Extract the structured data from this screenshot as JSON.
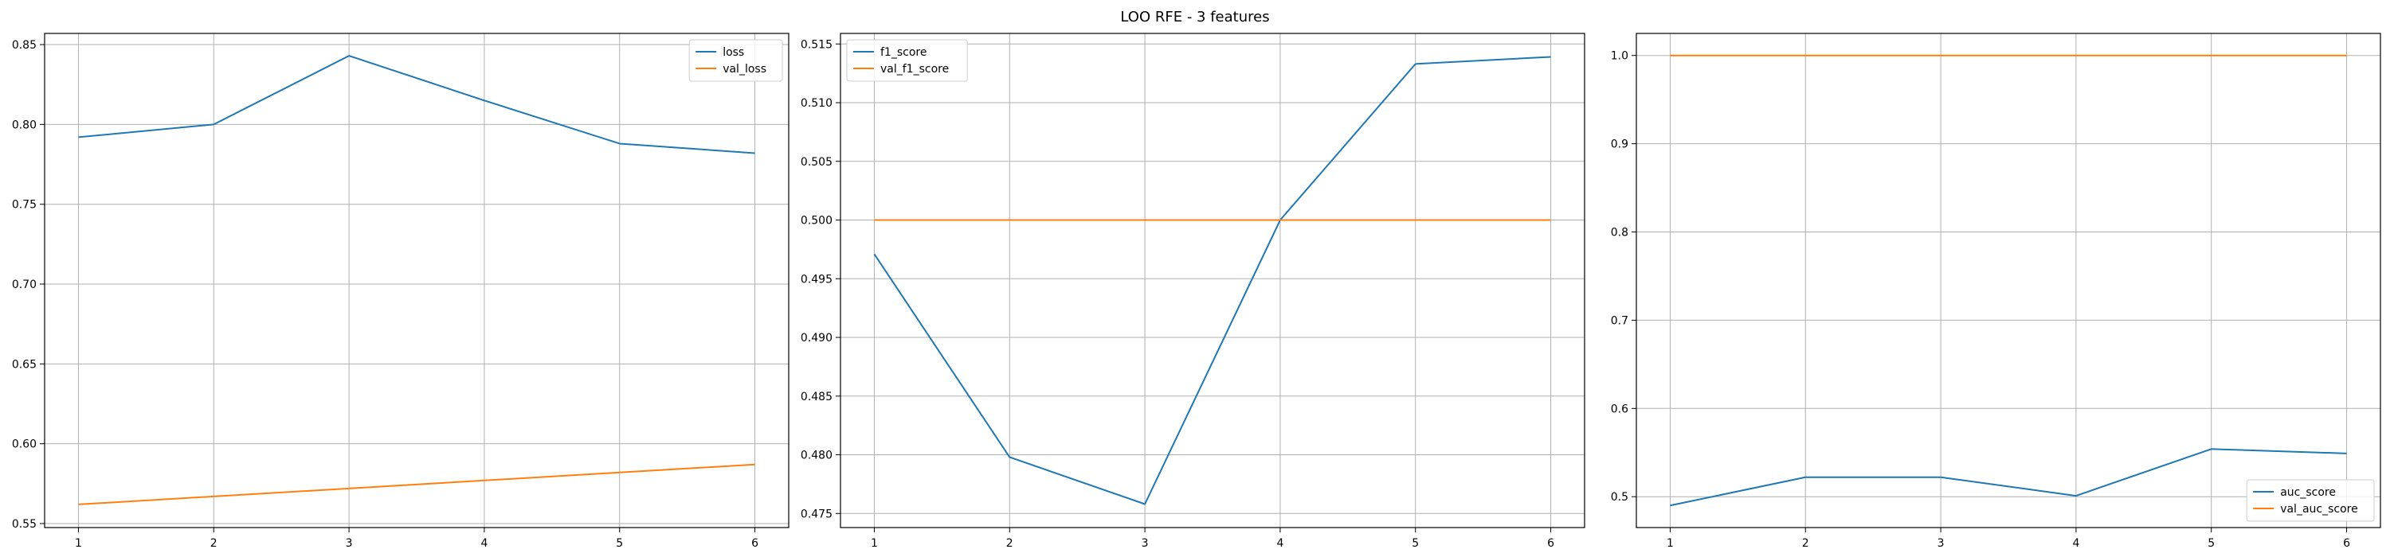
{
  "figure": {
    "title": "LOO RFE - 3 features"
  },
  "chart_data": [
    {
      "type": "line",
      "x": [
        1,
        2,
        3,
        4,
        5,
        6
      ],
      "xlim": [
        0.75,
        6.25
      ],
      "ylim": [
        0.5475,
        0.857
      ],
      "xticks": [
        1,
        2,
        3,
        4,
        5,
        6
      ],
      "yticks": [
        0.55,
        0.6,
        0.65,
        0.7,
        0.75,
        0.8,
        0.85
      ],
      "ytick_decimals": 2,
      "grid": true,
      "legend_loc": "upper right",
      "series": [
        {
          "name": "loss",
          "color": "#1f77b4",
          "values": [
            0.792,
            0.8,
            0.843,
            0.815,
            0.788,
            0.782
          ]
        },
        {
          "name": "val_loss",
          "color": "#ff7f0e",
          "values": [
            0.562,
            0.567,
            0.572,
            0.577,
            0.582,
            0.587
          ]
        }
      ]
    },
    {
      "type": "line",
      "x": [
        1,
        2,
        3,
        4,
        5,
        6
      ],
      "xlim": [
        0.75,
        6.25
      ],
      "ylim": [
        0.4738,
        0.5159
      ],
      "xticks": [
        1,
        2,
        3,
        4,
        5,
        6
      ],
      "yticks": [
        0.475,
        0.48,
        0.485,
        0.49,
        0.495,
        0.5,
        0.505,
        0.51,
        0.515
      ],
      "ytick_decimals": 3,
      "grid": true,
      "legend_loc": "upper left",
      "series": [
        {
          "name": "f1_score",
          "color": "#1f77b4",
          "values": [
            0.4971,
            0.4798,
            0.4758,
            0.5,
            0.5133,
            0.5139
          ]
        },
        {
          "name": "val_f1_score",
          "color": "#ff7f0e",
          "values": [
            0.5,
            0.5,
            0.5,
            0.5,
            0.5,
            0.5
          ]
        }
      ]
    },
    {
      "type": "line",
      "x": [
        1,
        2,
        3,
        4,
        5,
        6
      ],
      "xlim": [
        0.75,
        6.25
      ],
      "ylim": [
        0.465,
        1.025
      ],
      "xticks": [
        1,
        2,
        3,
        4,
        5,
        6
      ],
      "yticks": [
        0.5,
        0.6,
        0.7,
        0.8,
        0.9,
        1.0
      ],
      "ytick_decimals": 1,
      "grid": true,
      "legend_loc": "lower right",
      "series": [
        {
          "name": "auc_score",
          "color": "#1f77b4",
          "values": [
            0.49,
            0.522,
            0.522,
            0.501,
            0.554,
            0.549
          ]
        },
        {
          "name": "val_auc_score",
          "color": "#ff7f0e",
          "values": [
            1.0,
            1.0,
            1.0,
            1.0,
            1.0,
            1.0
          ]
        }
      ]
    }
  ]
}
